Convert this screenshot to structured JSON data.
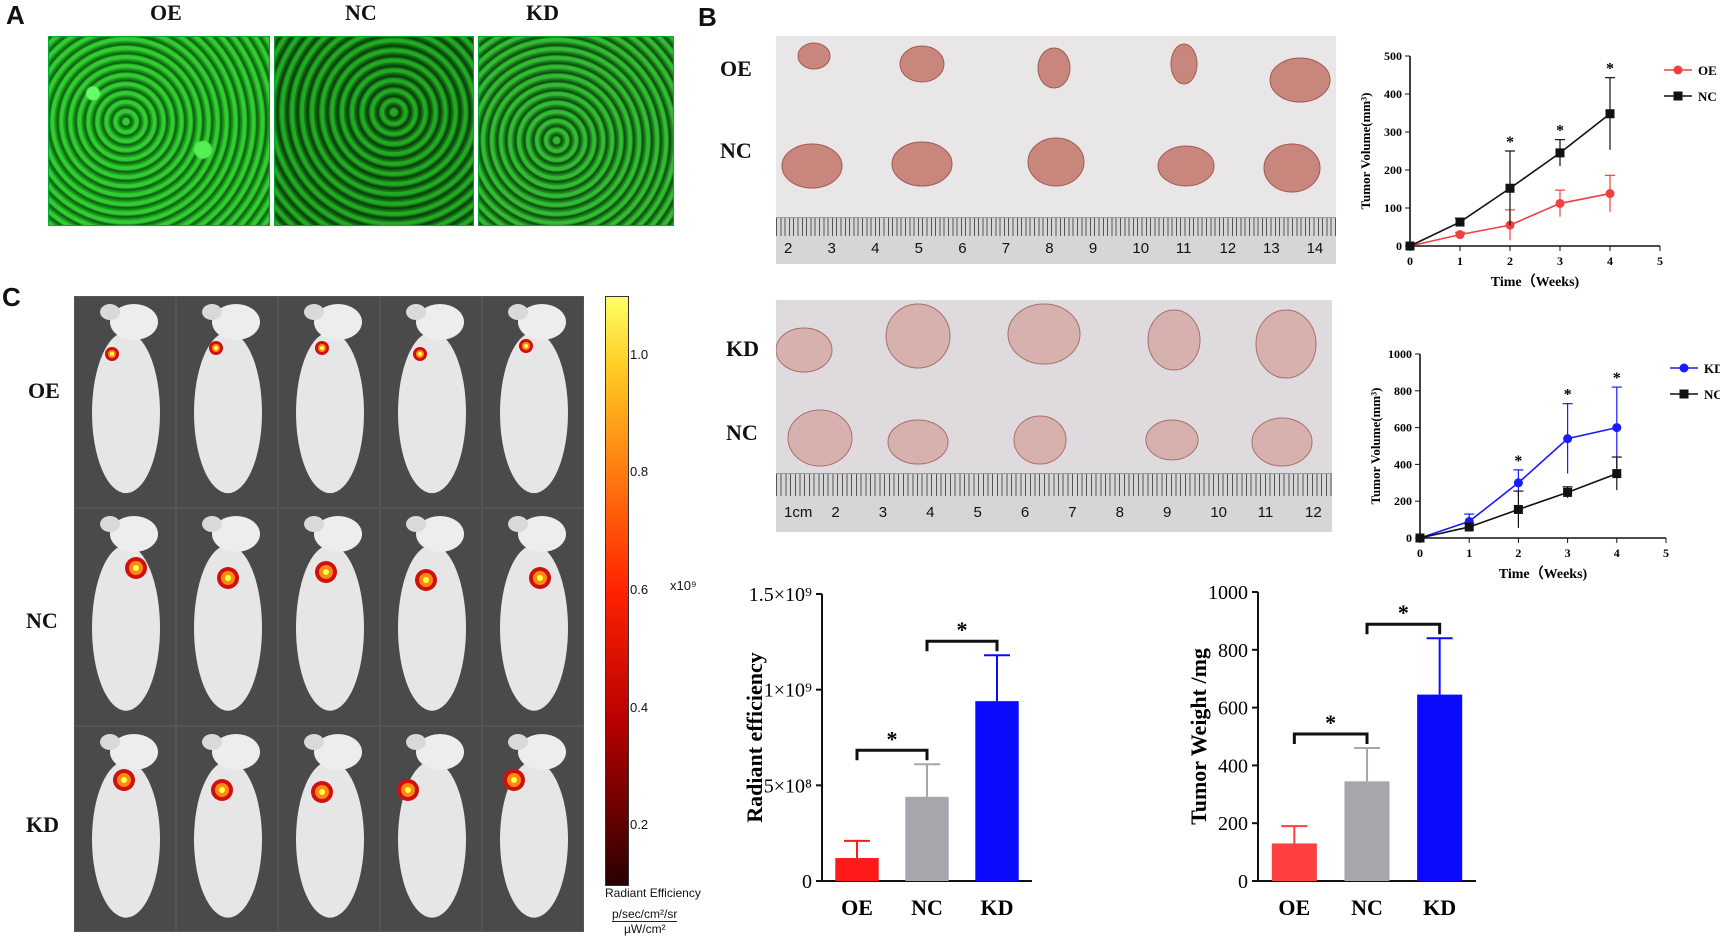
{
  "panels": {
    "a": "A",
    "b": "B",
    "c": "C"
  },
  "panelA": {
    "labels": [
      "OE",
      "NC",
      "KD"
    ]
  },
  "panelB": {
    "top_labels": [
      "OE",
      "NC"
    ],
    "bottom_labels": [
      "KD",
      "NC"
    ],
    "ruler_top_ticks": [
      "2",
      "3",
      "4",
      "5",
      "6",
      "7",
      "8",
      "9",
      "10",
      "11",
      "12",
      "13",
      "14"
    ],
    "ruler_bottom_ticks": [
      "1cm",
      "2",
      "3",
      "4",
      "5",
      "6",
      "7",
      "8",
      "9",
      "10",
      "11",
      "12"
    ]
  },
  "panelC": {
    "row_labels": [
      "OE",
      "NC",
      "KD"
    ],
    "colorbar_ticks": [
      "1.0",
      "0.8",
      "0.6",
      "0.4",
      "0.2"
    ],
    "colorbar_scale": "x10⁹",
    "colorbar_title": "Radiant Efficiency",
    "colorbar_units_num": "p/sec/cm²/sr",
    "colorbar_units_den": "µW/cm²",
    "colors": {
      "top": "#ffff66",
      "mid": "#ff2200",
      "bottom": "#2a0000"
    }
  },
  "chart_data": [
    {
      "type": "line",
      "xlabel": "Time（Weeks)",
      "ylabel": "Tumor Volume(mm³)",
      "x": [
        0,
        1,
        2,
        3,
        4
      ],
      "xlim": [
        0,
        5
      ],
      "ylim": [
        0,
        500
      ],
      "xticks": [
        "0",
        "1",
        "2",
        "3",
        "4",
        "5"
      ],
      "yticks": [
        "0",
        "100",
        "200",
        "300",
        "400",
        "500"
      ],
      "series": [
        {
          "name": "OE",
          "color": "#f04040",
          "marker": "circle",
          "values": [
            0,
            30,
            55,
            112,
            138
          ],
          "errors": [
            0,
            6,
            40,
            35,
            48
          ]
        },
        {
          "name": "NC",
          "color": "#111111",
          "marker": "square",
          "values": [
            0,
            63,
            152,
            245,
            348
          ],
          "errors": [
            0,
            10,
            98,
            35,
            95
          ]
        }
      ],
      "annotations": [
        {
          "x": 2,
          "text": "*"
        },
        {
          "x": 3,
          "text": "*"
        },
        {
          "x": 4,
          "text": "*"
        }
      ],
      "legend": "top-right"
    },
    {
      "type": "line",
      "xlabel": "Time（Weeks)",
      "ylabel": "Tumor Volume(mm³)",
      "x": [
        0,
        1,
        2,
        3,
        4
      ],
      "xlim": [
        0,
        5
      ],
      "ylim": [
        0,
        1000
      ],
      "xticks": [
        "0",
        "1",
        "2",
        "3",
        "4",
        "5"
      ],
      "yticks": [
        "0",
        "200",
        "400",
        "600",
        "800",
        "1000"
      ],
      "series": [
        {
          "name": "KD",
          "color": "#1a1aff",
          "marker": "circle",
          "values": [
            0,
            90,
            300,
            540,
            600
          ],
          "errors": [
            0,
            40,
            70,
            190,
            220
          ]
        },
        {
          "name": "NC",
          "color": "#111111",
          "marker": "square",
          "values": [
            0,
            60,
            155,
            248,
            350
          ],
          "errors": [
            0,
            20,
            100,
            30,
            90
          ]
        }
      ],
      "annotations": [
        {
          "x": 2,
          "text": "*"
        },
        {
          "x": 3,
          "text": "*"
        },
        {
          "x": 4,
          "text": "*"
        }
      ],
      "legend": "top-right"
    },
    {
      "type": "bar",
      "categories": [
        "OE",
        "NC",
        "KD"
      ],
      "values": [
        120000000,
        440000000,
        940000000
      ],
      "errors": [
        90000000,
        170000000,
        240000000
      ],
      "colors": [
        "#ff1a1a",
        "#a6a6ad",
        "#0a0aff"
      ],
      "ylabel": "Radiant efficiency",
      "ylim": [
        0,
        1500000000
      ],
      "yticks": [
        "0",
        "5×10⁸",
        "1×10⁹",
        "1.5×10⁹"
      ],
      "brackets": [
        {
          "from": 0,
          "to": 1,
          "text": "*"
        },
        {
          "from": 1,
          "to": 2,
          "text": "*"
        }
      ]
    },
    {
      "type": "bar",
      "categories": [
        "OE",
        "NC",
        "KD"
      ],
      "values": [
        130,
        345,
        645
      ],
      "errors": [
        60,
        115,
        195
      ],
      "colors": [
        "#ff4040",
        "#a6a6ad",
        "#0a0aff"
      ],
      "ylabel": "Tumor Weight /mg",
      "ylim": [
        0,
        1000
      ],
      "yticks": [
        "0",
        "200",
        "400",
        "600",
        "800",
        "1000"
      ],
      "brackets": [
        {
          "from": 0,
          "to": 1,
          "text": "*"
        },
        {
          "from": 1,
          "to": 2,
          "text": "*"
        }
      ]
    }
  ]
}
